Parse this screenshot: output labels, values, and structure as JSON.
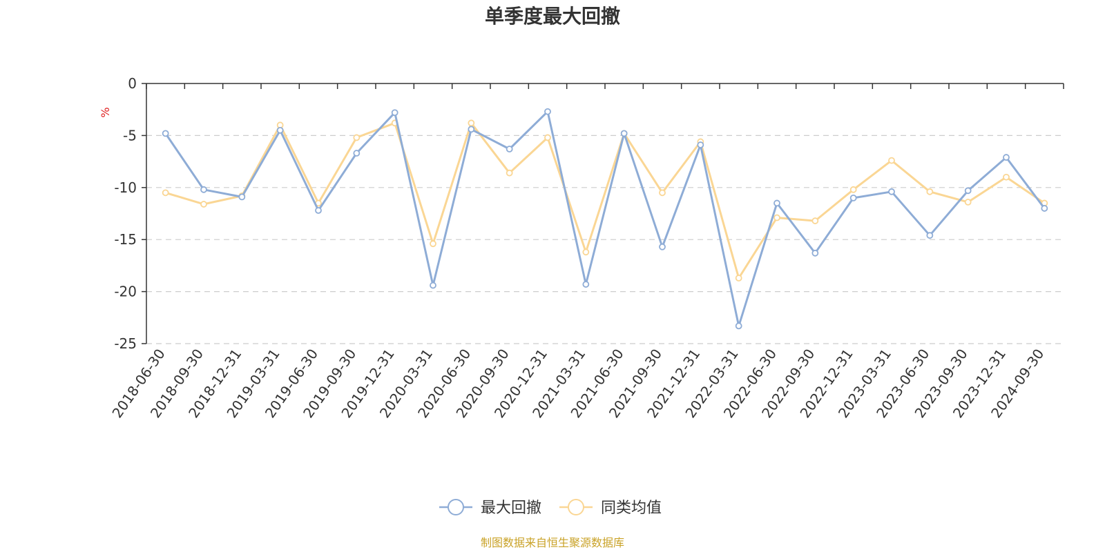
{
  "chart_data": {
    "type": "line",
    "title": "单季度最大回撤",
    "ylabel": "%",
    "xlabel": "",
    "ylim": [
      -25,
      0
    ],
    "yticks": [
      0,
      -5,
      -10,
      -15,
      -20,
      -25
    ],
    "grid": true,
    "legend_position": "bottom-center",
    "categories": [
      "2018-06-30",
      "2018-09-30",
      "2018-12-31",
      "2019-03-31",
      "2019-06-30",
      "2019-09-30",
      "2019-12-31",
      "2020-03-31",
      "2020-06-30",
      "2020-09-30",
      "2020-12-31",
      "2021-03-31",
      "2021-06-30",
      "2021-09-30",
      "2021-12-31",
      "2022-03-31",
      "2022-06-30",
      "2022-09-30",
      "2022-12-31",
      "2023-03-31",
      "2023-06-30",
      "2023-09-30",
      "2023-12-31",
      "2024-09-30"
    ],
    "series": [
      {
        "name": "最大回撤",
        "color": "#8eacd6",
        "values": [
          -4.8,
          -10.2,
          -10.9,
          -4.5,
          -12.2,
          -6.7,
          -2.8,
          -19.4,
          -4.4,
          -6.3,
          -2.7,
          -19.3,
          -4.8,
          -15.7,
          -5.9,
          -23.3,
          -11.5,
          -16.3,
          -11.0,
          -10.4,
          -14.6,
          -10.3,
          -7.1,
          -12.0
        ]
      },
      {
        "name": "同类均值",
        "color": "#fad694",
        "values": [
          -10.5,
          -11.6,
          -10.8,
          -4.0,
          -11.5,
          -5.2,
          -3.8,
          -15.4,
          -3.8,
          -8.6,
          -5.2,
          -16.2,
          -4.8,
          -10.5,
          -5.6,
          -18.7,
          -12.9,
          -13.2,
          -10.2,
          -7.4,
          -10.4,
          -11.4,
          -9.0,
          -11.5
        ]
      }
    ],
    "source_note": "制图数据来自恒生聚源数据库"
  }
}
